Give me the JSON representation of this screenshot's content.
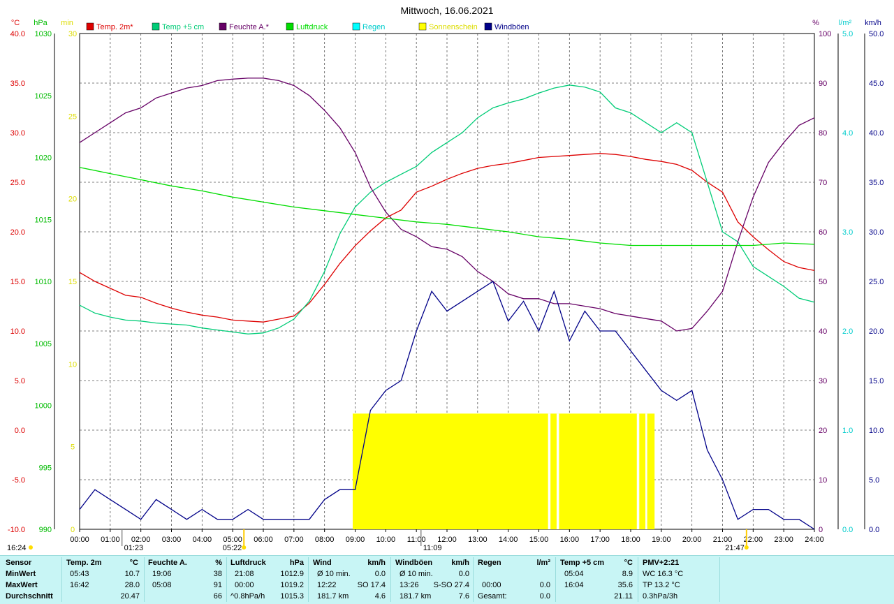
{
  "chart_data": {
    "type": "line",
    "title": "Mittwoch, 16.06.2021",
    "x_ticks": [
      "00:00",
      "01:00",
      "02:00",
      "03:00",
      "04:00",
      "05:00",
      "06:00",
      "07:00",
      "08:00",
      "09:00",
      "10:00",
      "11:00",
      "12:00",
      "13:00",
      "14:00",
      "15:00",
      "16:00",
      "17:00",
      "18:00",
      "19:00",
      "20:00",
      "21:00",
      "22:00",
      "23:00",
      "24:00"
    ],
    "axes": {
      "temp": {
        "unit": "°C",
        "range": [
          -10,
          40
        ],
        "ticks": [
          "40.0",
          "35.0",
          "30.0",
          "25.0",
          "20.0",
          "15.0",
          "10.0",
          "5.0",
          "0.0",
          "-5.0",
          "-10.0"
        ],
        "color": "#dd0000"
      },
      "pressure": {
        "unit": "hPa",
        "range": [
          990,
          1030
        ],
        "ticks": [
          "1030",
          "1025",
          "1020",
          "1015",
          "1010",
          "1005",
          "1000",
          "995",
          "990"
        ],
        "color": "#00bb00"
      },
      "sun": {
        "unit": "min",
        "range": [
          0,
          30
        ],
        "ticks": [
          "30",
          "25",
          "20",
          "15",
          "10",
          "5",
          "0"
        ],
        "color": "#dddd00"
      },
      "humidity": {
        "unit": "%",
        "range": [
          0,
          100
        ],
        "ticks": [
          "100",
          "90",
          "80",
          "70",
          "60",
          "50",
          "40",
          "30",
          "20",
          "10",
          "0"
        ],
        "color": "#660066"
      },
      "rain": {
        "unit": "l/m²",
        "range": [
          0,
          5
        ],
        "ticks": [
          "5.0",
          "4.0",
          "3.0",
          "2.0",
          "1.0",
          "0.0"
        ],
        "color": "#00cccc"
      },
      "wind": {
        "unit": "km/h",
        "range": [
          0,
          50
        ],
        "ticks": [
          "50.0",
          "45.0",
          "40.0",
          "35.0",
          "30.0",
          "25.0",
          "20.0",
          "15.0",
          "10.0",
          "5.0",
          "0.0"
        ],
        "color": "#000088"
      }
    },
    "legend": [
      {
        "label": "Temp. 2m*",
        "color": "#dd0000"
      },
      {
        "label": "Temp +5 cm",
        "color": "#00cc77"
      },
      {
        "label": "Feuchte A.*",
        "color": "#660066"
      },
      {
        "label": "Luftdruck",
        "color": "#00dd00"
      },
      {
        "label": "Regen",
        "color": "#00ffff"
      },
      {
        "label": "Sonnenschein",
        "color": "#ffff00"
      },
      {
        "label": "Windböen",
        "color": "#000088"
      }
    ],
    "series": [
      {
        "name": "Temp. 2m*",
        "axis": "temp",
        "color": "#dd0000",
        "x": [
          0,
          0.5,
          1,
          1.5,
          2,
          2.5,
          3,
          3.5,
          4,
          4.5,
          5,
          5.5,
          6,
          6.5,
          7,
          7.5,
          8,
          8.5,
          9,
          9.5,
          10,
          10.5,
          11,
          11.5,
          12,
          12.5,
          13,
          13.5,
          14,
          14.5,
          15,
          15.5,
          16,
          16.5,
          17,
          17.5,
          18,
          18.5,
          19,
          19.5,
          20,
          20.5,
          21,
          21.5,
          22,
          22.5,
          23,
          23.5,
          24
        ],
        "y": [
          15.9,
          15.0,
          14.3,
          13.6,
          13.4,
          12.8,
          12.3,
          11.9,
          11.6,
          11.4,
          11.1,
          11.0,
          10.9,
          11.2,
          11.5,
          12.8,
          14.7,
          16.8,
          18.6,
          20.1,
          21.4,
          22.2,
          24.0,
          24.6,
          25.3,
          25.9,
          26.4,
          26.7,
          26.9,
          27.2,
          27.5,
          27.6,
          27.7,
          27.8,
          27.9,
          27.8,
          27.6,
          27.3,
          27.1,
          26.8,
          26.2,
          25.0,
          24.0,
          21.0,
          19.5,
          18.2,
          17.0,
          16.4,
          16.1
        ]
      },
      {
        "name": "Temp +5 cm",
        "axis": "temp",
        "color": "#00cc77",
        "x": [
          0,
          0.5,
          1,
          1.5,
          2,
          2.5,
          3,
          3.5,
          4,
          4.5,
          5,
          5.5,
          6,
          6.5,
          7,
          7.5,
          8,
          8.5,
          9,
          9.5,
          10,
          10.5,
          11,
          11.5,
          12,
          12.5,
          13,
          13.5,
          14,
          14.5,
          15,
          15.5,
          16,
          16.5,
          17,
          17.5,
          18,
          18.5,
          19,
          19.5,
          20,
          20.5,
          21,
          21.5,
          22,
          22.5,
          23,
          23.5,
          24
        ],
        "y": [
          12.6,
          11.8,
          11.4,
          11.1,
          11.0,
          10.8,
          10.7,
          10.6,
          10.3,
          10.1,
          9.9,
          9.7,
          9.8,
          10.3,
          11.2,
          13.0,
          16.0,
          19.8,
          22.5,
          24.0,
          25.0,
          25.8,
          26.6,
          28.0,
          29.0,
          30.0,
          31.5,
          32.5,
          33.0,
          33.4,
          34.0,
          34.5,
          34.8,
          34.6,
          34.1,
          32.5,
          32.0,
          31.0,
          30.0,
          31.0,
          30.0,
          25.0,
          20.0,
          19.0,
          16.5,
          15.5,
          14.5,
          13.3,
          12.9
        ]
      },
      {
        "name": "Feuchte A.*",
        "axis": "humidity",
        "color": "#660066",
        "x": [
          0,
          0.5,
          1,
          1.5,
          2,
          2.5,
          3,
          3.5,
          4,
          4.5,
          5,
          5.5,
          6,
          6.5,
          7,
          7.5,
          8,
          8.5,
          9,
          9.5,
          10,
          10.5,
          11,
          11.5,
          12,
          12.5,
          13,
          13.5,
          14,
          14.5,
          15,
          15.5,
          16,
          16.5,
          17,
          17.5,
          18,
          18.5,
          19,
          19.5,
          20,
          20.5,
          21,
          21.5,
          22,
          22.5,
          23,
          23.5,
          24
        ],
        "y": [
          78,
          80,
          82,
          84,
          85,
          87,
          88,
          89,
          89.5,
          90.5,
          90.8,
          91,
          91,
          90.5,
          89.5,
          87.5,
          84.5,
          81,
          76,
          69,
          64,
          60.5,
          59,
          57,
          56.5,
          55,
          52,
          50,
          47.5,
          46.5,
          46.5,
          45.5,
          45.5,
          45,
          44.5,
          43.5,
          43,
          42.5,
          42,
          40,
          40.5,
          44,
          48,
          58,
          67,
          74,
          78,
          81.5,
          83
        ]
      },
      {
        "name": "Luftdruck",
        "axis": "pressure",
        "color": "#00dd00",
        "x": [
          0,
          1,
          2,
          3,
          4,
          5,
          6,
          7,
          8,
          9,
          10,
          11,
          12,
          13,
          14,
          15,
          16,
          17,
          18,
          19,
          20,
          21,
          22,
          23,
          24
        ],
        "y": [
          1019.2,
          1018.7,
          1018.2,
          1017.7,
          1017.3,
          1016.8,
          1016.4,
          1016.0,
          1015.7,
          1015.4,
          1015.1,
          1014.8,
          1014.6,
          1014.3,
          1014.0,
          1013.6,
          1013.4,
          1013.1,
          1012.9,
          1012.9,
          1012.9,
          1012.9,
          1012.9,
          1013.1,
          1013.0
        ]
      },
      {
        "name": "Windböen",
        "axis": "wind",
        "color": "#000088",
        "x": [
          0,
          0.5,
          1,
          1.5,
          2,
          2.5,
          3,
          3.5,
          4,
          4.5,
          5,
          5.5,
          6,
          6.5,
          7,
          7.5,
          8,
          8.5,
          9,
          9.5,
          10,
          10.5,
          11,
          11.5,
          12,
          12.5,
          13,
          13.5,
          14,
          14.5,
          15,
          15.5,
          16,
          16.5,
          17,
          17.5,
          18,
          18.5,
          19,
          19.5,
          20,
          20.5,
          21,
          21.5,
          22,
          22.5,
          23,
          23.5,
          24
        ],
        "y": [
          2,
          4,
          3,
          2,
          1,
          3,
          2,
          1,
          2,
          1,
          1,
          2,
          1,
          1,
          1,
          1,
          3,
          4,
          4,
          12,
          14,
          15,
          20,
          24,
          22,
          23,
          24,
          25,
          21,
          23,
          20,
          24,
          19,
          22,
          20,
          20,
          18,
          16,
          14,
          13,
          14,
          8,
          5,
          1,
          2,
          2,
          1,
          1,
          0
        ]
      }
    ],
    "sunshine_bar": {
      "start": 8.92,
      "end": 18.78,
      "gaps": [
        [
          15.3,
          15.38
        ],
        [
          15.58,
          15.66
        ],
        [
          18.2,
          18.28
        ],
        [
          18.48,
          18.54
        ]
      ],
      "height_min": 7
    },
    "sun_marks": {
      "sunrise": "05:22",
      "sunset": "21:47",
      "moon": [
        "01:23",
        "11:09"
      ]
    },
    "stats": {
      "label_min": "MinWert",
      "label_max": "MaxWert",
      "label_avg": "Durchschnitt",
      "label_sensor": "Sensor",
      "temp2m": {
        "title": "Temp. 2m",
        "unit": "°C",
        "min_time": "05:43",
        "min": "10.7",
        "max_time": "16:42",
        "max": "28.0",
        "avg": "20.47"
      },
      "humidity": {
        "title": "Feuchte A.",
        "unit": "%",
        "min_time": "19:06",
        "min": "38",
        "max_time": "05:08",
        "max": "91",
        "avg": "66"
      },
      "pressure": {
        "title": "Luftdruck",
        "unit": "hPa",
        "min_time": "21:08",
        "min": "1012.9",
        "max_time": "00:00",
        "max": "1019.2",
        "avg_label": "^0.8hPa/h",
        "avg": "1015.3"
      },
      "wind": {
        "title": "Wind",
        "unit": "km/h",
        "min_label": "Ø 10 min.",
        "min": "0.0",
        "max_time": "12:22",
        "max_dir": "SO 17.4",
        "total": "181.7 km",
        "avg": "4.6"
      },
      "gusts": {
        "title": "Windböen",
        "unit": "km/h",
        "min_label": "Ø 10 min.",
        "min": "0.0",
        "max_time": "13:26",
        "max_dir": "S-SO 27.4",
        "total": "181.7 km",
        "avg": "7.6"
      },
      "rain": {
        "title": "Regen",
        "unit": "l/m²",
        "max_time": "00:00",
        "max": "0.0",
        "total_label": "Gesamt:",
        "total": "0.0"
      },
      "temp5cm": {
        "title": "Temp +5 cm",
        "unit": "°C",
        "min_time": "05:04",
        "min": "8.9",
        "max_time": "16:04",
        "max": "35.6",
        "avg": "21.11"
      },
      "pmv": {
        "title": "PMV+2:21",
        "line1": "WC 16.3 °C",
        "line2": "TP 13.2 °C",
        "line3": "0.3hPa/3h"
      }
    },
    "footer_left": "16:24"
  }
}
